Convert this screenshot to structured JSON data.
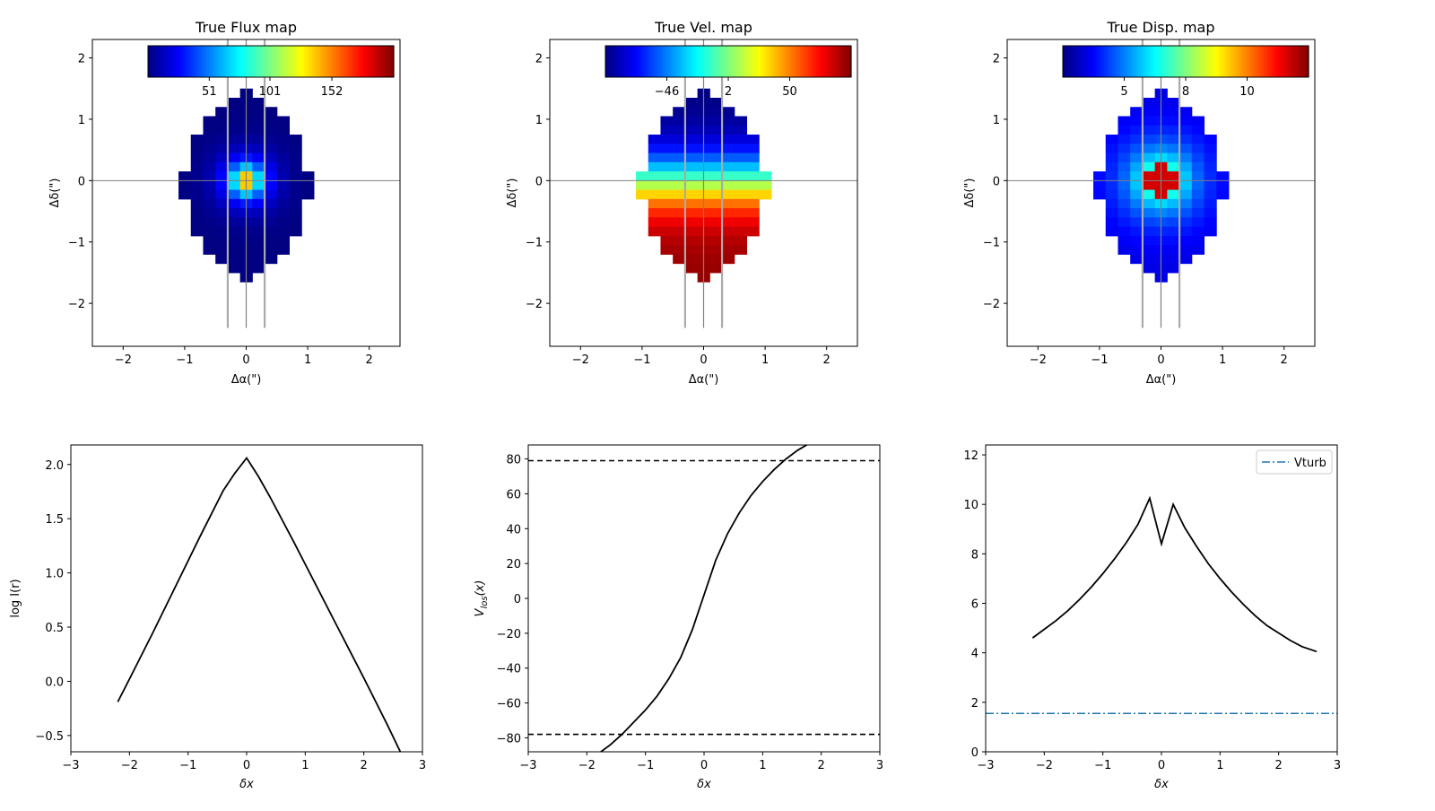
{
  "figure": {
    "colors": {
      "curve": "#000000",
      "guide_gray": "#808080",
      "slit_gray": "#aaaaaa",
      "vturb_blue": "#1f77b4"
    }
  },
  "chart_data": [
    {
      "type": "heatmap",
      "title": "True Flux map",
      "xlabel": "Δα(\")",
      "ylabel": "Δδ(\")",
      "xlim": [
        -2.5,
        2.5
      ],
      "ylim": [
        -2.7,
        2.3
      ],
      "xticks": [
        "−2",
        "−1",
        "0",
        "1",
        "2"
      ],
      "yticks": [
        "−2",
        "−1",
        "0",
        "1",
        "2"
      ],
      "colormap": "jet",
      "colorbar": {
        "ticks": [
          "51",
          "101",
          "152"
        ],
        "tick_values": [
          51,
          101,
          152
        ],
        "vmin": 0.5,
        "vmax": 203
      },
      "value_key": "flux",
      "slits_x": [
        -0.3,
        0,
        0.3
      ],
      "slit_y": [
        -2.4,
        2.3
      ]
    },
    {
      "type": "heatmap",
      "title": "True Vel. map",
      "xlabel": "Δα(\")",
      "ylabel": "Δδ(\")",
      "xlim": [
        -2.5,
        2.5
      ],
      "ylim": [
        -2.7,
        2.3
      ],
      "xticks": [
        "−2",
        "−1",
        "0",
        "1",
        "2"
      ],
      "yticks": [
        "−2",
        "−1",
        "0",
        "1",
        "2"
      ],
      "colormap": "jet",
      "colorbar": {
        "ticks": [
          "−46",
          "2",
          "50"
        ],
        "tick_values": [
          -46,
          2,
          50
        ],
        "vmin": -94,
        "vmax": 98
      },
      "value_key": "vel",
      "slits_x": [
        -0.3,
        0,
        0.3
      ],
      "slit_y": [
        -2.4,
        2.3
      ]
    },
    {
      "type": "heatmap",
      "title": "True Disp. map",
      "xlabel": "Δα(\")",
      "ylabel": "Δδ(\")",
      "xlim": [
        -2.5,
        2.5
      ],
      "ylim": [
        -2.7,
        2.3
      ],
      "xticks": [
        "−2",
        "−1",
        "0",
        "1",
        "2"
      ],
      "yticks": [
        "−2",
        "−1",
        "0",
        "1",
        "2"
      ],
      "colormap": "jet",
      "colorbar": {
        "ticks": [
          "5",
          "8",
          "10"
        ],
        "tick_values": [
          5.4,
          7.8,
          10.2
        ],
        "vmin": 3.0,
        "vmax": 12.6
      },
      "value_key": "disp",
      "slits_x": [
        -0.3,
        0,
        0.3
      ],
      "slit_y": [
        -2.4,
        2.3
      ]
    },
    {
      "type": "line",
      "xlabel": "δx",
      "ylabel": "log I(r)",
      "xlim": [
        -3,
        3
      ],
      "ylim": [
        -0.65,
        2.18
      ],
      "xticks": [
        -3,
        -2,
        -1,
        0,
        1,
        2,
        3
      ],
      "yticks": [
        -0.5,
        0.0,
        0.5,
        1.0,
        1.5,
        2.0
      ],
      "xtick_labels": [
        "−3",
        "−2",
        "−1",
        "0",
        "1",
        "2",
        "3"
      ],
      "ytick_labels": [
        "−0.5",
        "0.0",
        "0.5",
        "1.0",
        "1.5",
        "2.0"
      ],
      "series": [
        {
          "x": [
            -2.2,
            -2.0,
            -1.6,
            -1.2,
            -0.8,
            -0.4,
            -0.2,
            0.0,
            0.2,
            0.4,
            0.8,
            1.2,
            1.6,
            2.0,
            2.4,
            2.65
          ],
          "values": [
            -0.19,
            0.02,
            0.45,
            0.89,
            1.33,
            1.76,
            1.92,
            2.06,
            1.89,
            1.7,
            1.29,
            0.87,
            0.45,
            0.03,
            -0.4,
            -0.68
          ]
        }
      ]
    },
    {
      "type": "line",
      "xlabel": "δx",
      "ylabel": "V_los(x)",
      "xlim": [
        -3,
        3
      ],
      "ylim": [
        -88,
        88
      ],
      "xticks": [
        -3,
        -2,
        -1,
        0,
        1,
        2,
        3
      ],
      "yticks": [
        -80,
        -60,
        -40,
        -20,
        0,
        20,
        40,
        60,
        80
      ],
      "xtick_labels": [
        "−3",
        "−2",
        "−1",
        "0",
        "1",
        "2",
        "3"
      ],
      "ytick_labels": [
        "−80",
        "−60",
        "−40",
        "−20",
        "0",
        "20",
        "40",
        "60",
        "80"
      ],
      "hlines": [
        79,
        -78
      ],
      "series": [
        {
          "x": [
            -1.8,
            -1.6,
            -1.4,
            -1.2,
            -1.0,
            -0.8,
            -0.6,
            -0.4,
            -0.2,
            0.0,
            0.2,
            0.4,
            0.6,
            0.8,
            1.0,
            1.2,
            1.4,
            1.6,
            1.8
          ],
          "values": [
            -89,
            -84,
            -78,
            -71,
            -64,
            -56,
            -46,
            -34,
            -18,
            2,
            22,
            37,
            49,
            59,
            67,
            74,
            80,
            85,
            89
          ]
        }
      ]
    },
    {
      "type": "line",
      "xlabel": "δx",
      "ylabel": "",
      "xlim": [
        -3,
        3
      ],
      "ylim": [
        0,
        12.4
      ],
      "xticks": [
        -3,
        -2,
        -1,
        0,
        1,
        2,
        3
      ],
      "yticks": [
        0,
        2,
        4,
        6,
        8,
        10,
        12
      ],
      "xtick_labels": [
        "−3",
        "−2",
        "−1",
        "0",
        "1",
        "2",
        "3"
      ],
      "ytick_labels": [
        "0",
        "2",
        "4",
        "6",
        "8",
        "10",
        "12"
      ],
      "legend": {
        "label": "Vturb",
        "position": "top-right"
      },
      "vturb": 1.55,
      "series": [
        {
          "x": [
            -2.2,
            -2.0,
            -1.8,
            -1.6,
            -1.4,
            -1.2,
            -1.0,
            -0.8,
            -0.6,
            -0.4,
            -0.2,
            0.0,
            0.2,
            0.4,
            0.6,
            0.8,
            1.0,
            1.2,
            1.4,
            1.6,
            1.8,
            2.0,
            2.2,
            2.4,
            2.65
          ],
          "values": [
            4.6,
            4.95,
            5.3,
            5.7,
            6.15,
            6.65,
            7.2,
            7.8,
            8.45,
            9.2,
            10.25,
            8.4,
            10.0,
            9.05,
            8.3,
            7.6,
            7.0,
            6.45,
            5.95,
            5.5,
            5.1,
            4.8,
            4.5,
            4.25,
            4.05
          ]
        }
      ]
    }
  ]
}
